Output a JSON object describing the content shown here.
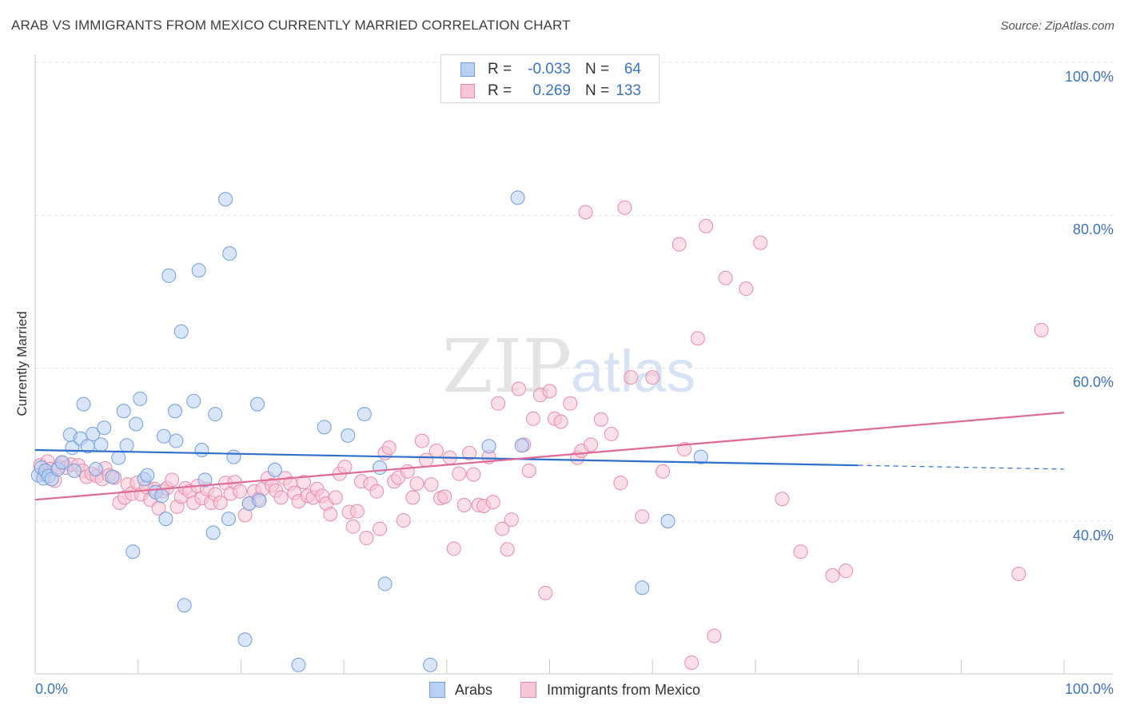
{
  "title": "ARAB VS IMMIGRANTS FROM MEXICO CURRENTLY MARRIED CORRELATION CHART",
  "source": "Source: ZipAtlas.com",
  "watermark": {
    "zip": "ZIP",
    "atlas": "atlas"
  },
  "legend_top": {
    "rows": [
      {
        "r_label": "R =",
        "r_value": "-0.033",
        "n_label": "N =",
        "n_value": "64"
      },
      {
        "r_label": "R =",
        "r_value": "0.269",
        "n_label": "N =",
        "n_value": "133"
      }
    ]
  },
  "legend_bottom": {
    "arabs": "Arabs",
    "mexico": "Immigrants from Mexico"
  },
  "x_labels": {
    "left": "0.0%",
    "right": "100.0%"
  },
  "y_labels": {
    "y100": "100.0%",
    "y80": "80.0%",
    "y60": "60.0%",
    "y40": "40.0%"
  },
  "colors": {
    "blue": "#6e9de0",
    "blue_fill": "#b9d0f2",
    "blue_line": "#2f6fcc",
    "pink": "#e98aa8",
    "pink_fill": "#f7c5d4",
    "pink_line": "#e06a95",
    "axis_text": "#3b73c5",
    "grid": "#e3e3e3"
  },
  "chart_data": {
    "type": "scatter",
    "title": "ARAB VS IMMIGRANTS FROM MEXICO CURRENTLY MARRIED CORRELATION CHART",
    "xlabel": "",
    "ylabel": "Currently Married",
    "xlim": [
      0,
      100
    ],
    "ylim": [
      21,
      104
    ],
    "y_ticks": [
      40,
      60,
      80,
      100
    ],
    "grid": true,
    "legend": "bottom-center",
    "series": [
      {
        "name": "Arabs",
        "r": -0.033,
        "n": 64,
        "trend": {
          "x0": 0,
          "y0": 49.3,
          "x1": 80,
          "y1": 47.3,
          "dashed_to": 100,
          "dashed_y": 46.8
        },
        "points": [
          [
            0.3,
            46.0
          ],
          [
            0.6,
            47.0
          ],
          [
            0.8,
            45.6
          ],
          [
            1.0,
            46.6
          ],
          [
            1.3,
            45.9
          ],
          [
            1.6,
            45.5
          ],
          [
            2.2,
            46.8
          ],
          [
            2.6,
            47.7
          ],
          [
            3.4,
            51.3
          ],
          [
            3.6,
            49.6
          ],
          [
            3.8,
            46.6
          ],
          [
            4.4,
            50.8
          ],
          [
            4.7,
            55.3
          ],
          [
            5.1,
            49.8
          ],
          [
            5.6,
            51.4
          ],
          [
            5.9,
            46.8
          ],
          [
            6.4,
            50.0
          ],
          [
            6.7,
            52.2
          ],
          [
            7.5,
            45.8
          ],
          [
            8.1,
            48.3
          ],
          [
            8.6,
            54.4
          ],
          [
            8.9,
            49.9
          ],
          [
            9.5,
            36.0
          ],
          [
            9.8,
            52.7
          ],
          [
            10.2,
            56.0
          ],
          [
            10.6,
            45.5
          ],
          [
            10.9,
            46.0
          ],
          [
            11.7,
            43.8
          ],
          [
            12.3,
            43.3
          ],
          [
            12.5,
            51.1
          ],
          [
            12.7,
            40.3
          ],
          [
            13.0,
            72.1
          ],
          [
            13.6,
            54.4
          ],
          [
            13.7,
            50.5
          ],
          [
            14.2,
            64.8
          ],
          [
            14.5,
            29.0
          ],
          [
            15.4,
            55.7
          ],
          [
            15.9,
            72.8
          ],
          [
            16.2,
            49.3
          ],
          [
            16.5,
            45.4
          ],
          [
            17.3,
            38.5
          ],
          [
            17.5,
            54.0
          ],
          [
            18.5,
            82.1
          ],
          [
            18.8,
            40.3
          ],
          [
            18.9,
            75.0
          ],
          [
            19.3,
            48.4
          ],
          [
            20.4,
            24.5
          ],
          [
            20.8,
            42.3
          ],
          [
            21.6,
            55.3
          ],
          [
            21.8,
            42.7
          ],
          [
            23.3,
            46.7
          ],
          [
            25.6,
            21.2
          ],
          [
            28.1,
            52.3
          ],
          [
            30.4,
            51.2
          ],
          [
            32.0,
            54.0
          ],
          [
            33.5,
            47.0
          ],
          [
            34.0,
            31.8
          ],
          [
            38.4,
            21.2
          ],
          [
            44.1,
            49.8
          ],
          [
            46.9,
            82.3
          ],
          [
            47.3,
            49.9
          ],
          [
            59.0,
            31.3
          ],
          [
            61.5,
            40.0
          ],
          [
            64.7,
            48.4
          ]
        ]
      },
      {
        "name": "Immigrants from Mexico",
        "r": 0.269,
        "n": 133,
        "trend": {
          "x0": 0,
          "y0": 42.8,
          "x1": 100,
          "y1": 54.2
        },
        "points": [
          [
            0.5,
            47.3
          ],
          [
            0.9,
            46.2
          ],
          [
            1.2,
            47.8
          ],
          [
            1.5,
            46.8
          ],
          [
            1.9,
            45.3
          ],
          [
            2.3,
            47.1
          ],
          [
            2.7,
            47.6
          ],
          [
            3.0,
            47.0
          ],
          [
            3.5,
            47.4
          ],
          [
            4.2,
            47.3
          ],
          [
            4.6,
            46.6
          ],
          [
            5.0,
            45.8
          ],
          [
            5.5,
            46.2
          ],
          [
            6.0,
            45.9
          ],
          [
            6.5,
            45.5
          ],
          [
            6.8,
            46.9
          ],
          [
            7.2,
            46.0
          ],
          [
            7.7,
            45.7
          ],
          [
            8.2,
            42.4
          ],
          [
            8.7,
            43.1
          ],
          [
            9.0,
            44.8
          ],
          [
            9.4,
            43.6
          ],
          [
            9.9,
            45.0
          ],
          [
            10.3,
            43.5
          ],
          [
            10.8,
            44.5
          ],
          [
            11.2,
            42.8
          ],
          [
            11.6,
            44.2
          ],
          [
            12.0,
            41.7
          ],
          [
            12.4,
            43.9
          ],
          [
            12.8,
            44.3
          ],
          [
            13.3,
            45.4
          ],
          [
            13.8,
            41.9
          ],
          [
            14.2,
            43.2
          ],
          [
            14.6,
            44.3
          ],
          [
            15.0,
            43.9
          ],
          [
            15.4,
            42.4
          ],
          [
            15.8,
            44.6
          ],
          [
            16.2,
            43.0
          ],
          [
            16.7,
            44.2
          ],
          [
            17.1,
            42.4
          ],
          [
            17.5,
            43.5
          ],
          [
            18.0,
            42.4
          ],
          [
            18.5,
            45.0
          ],
          [
            19.0,
            43.6
          ],
          [
            19.4,
            45.1
          ],
          [
            19.9,
            43.9
          ],
          [
            20.4,
            40.8
          ],
          [
            20.8,
            42.3
          ],
          [
            21.3,
            43.9
          ],
          [
            21.7,
            42.9
          ],
          [
            22.1,
            44.2
          ],
          [
            22.6,
            45.6
          ],
          [
            23.0,
            44.7
          ],
          [
            23.4,
            44.0
          ],
          [
            23.9,
            43.1
          ],
          [
            24.3,
            45.6
          ],
          [
            24.8,
            44.9
          ],
          [
            25.2,
            43.7
          ],
          [
            25.6,
            42.6
          ],
          [
            26.1,
            45.1
          ],
          [
            26.5,
            43.3
          ],
          [
            27.0,
            43.1
          ],
          [
            27.4,
            44.2
          ],
          [
            27.9,
            43.3
          ],
          [
            28.3,
            42.3
          ],
          [
            28.7,
            40.9
          ],
          [
            29.2,
            43.1
          ],
          [
            29.6,
            46.2
          ],
          [
            30.1,
            47.1
          ],
          [
            30.5,
            41.2
          ],
          [
            30.9,
            39.3
          ],
          [
            31.3,
            41.3
          ],
          [
            31.7,
            45.2
          ],
          [
            32.2,
            37.8
          ],
          [
            32.6,
            44.9
          ],
          [
            33.2,
            43.9
          ],
          [
            33.5,
            39.0
          ],
          [
            34.0,
            48.9
          ],
          [
            34.4,
            49.6
          ],
          [
            34.9,
            45.2
          ],
          [
            35.3,
            45.7
          ],
          [
            35.8,
            40.1
          ],
          [
            36.2,
            46.5
          ],
          [
            36.7,
            43.1
          ],
          [
            37.1,
            44.9
          ],
          [
            37.6,
            50.5
          ],
          [
            38.0,
            48.0
          ],
          [
            38.5,
            44.8
          ],
          [
            39.0,
            49.2
          ],
          [
            39.4,
            43.0
          ],
          [
            39.8,
            43.2
          ],
          [
            40.3,
            48.3
          ],
          [
            40.7,
            36.4
          ],
          [
            41.2,
            46.2
          ],
          [
            41.7,
            42.1
          ],
          [
            42.2,
            48.9
          ],
          [
            42.6,
            46.1
          ],
          [
            43.1,
            42.1
          ],
          [
            43.6,
            42.0
          ],
          [
            44.1,
            48.4
          ],
          [
            44.5,
            42.5
          ],
          [
            45.0,
            55.4
          ],
          [
            45.4,
            39.0
          ],
          [
            45.9,
            36.3
          ],
          [
            46.3,
            40.2
          ],
          [
            47.0,
            57.3
          ],
          [
            47.5,
            50.0
          ],
          [
            48.0,
            46.6
          ],
          [
            48.4,
            53.4
          ],
          [
            49.1,
            56.5
          ],
          [
            49.6,
            30.6
          ],
          [
            50.0,
            57.0
          ],
          [
            50.5,
            53.4
          ],
          [
            51.1,
            53.0
          ],
          [
            52.0,
            55.4
          ],
          [
            52.7,
            48.3
          ],
          [
            53.1,
            49.2
          ],
          [
            53.5,
            80.4
          ],
          [
            54.0,
            50.0
          ],
          [
            55.0,
            53.3
          ],
          [
            56.0,
            51.4
          ],
          [
            56.9,
            45.0
          ],
          [
            57.3,
            81.0
          ],
          [
            57.9,
            58.8
          ],
          [
            59.0,
            40.6
          ],
          [
            60.0,
            58.8
          ],
          [
            61.0,
            46.5
          ],
          [
            62.6,
            76.2
          ],
          [
            63.1,
            49.4
          ],
          [
            63.8,
            21.5
          ],
          [
            64.4,
            63.9
          ],
          [
            65.2,
            78.6
          ],
          [
            66.0,
            25.0
          ],
          [
            67.1,
            71.8
          ],
          [
            69.1,
            70.4
          ],
          [
            70.5,
            76.4
          ],
          [
            72.6,
            42.9
          ],
          [
            74.4,
            36.0
          ],
          [
            77.5,
            32.9
          ],
          [
            78.8,
            33.5
          ],
          [
            95.6,
            33.1
          ],
          [
            97.8,
            65.0
          ]
        ]
      }
    ]
  }
}
